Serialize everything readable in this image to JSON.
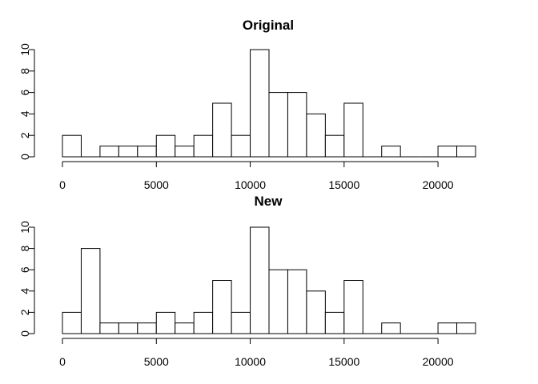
{
  "chart_data": [
    {
      "type": "bar",
      "title": "Original",
      "xlabel": "",
      "ylabel": "",
      "bin_width": 1000,
      "x": [
        0,
        1000,
        2000,
        3000,
        4000,
        5000,
        6000,
        7000,
        8000,
        9000,
        10000,
        11000,
        12000,
        13000,
        14000,
        15000,
        16000,
        17000,
        18000,
        19000,
        20000,
        21000
      ],
      "values": [
        2,
        0,
        1,
        1,
        1,
        2,
        1,
        2,
        5,
        2,
        10,
        6,
        6,
        4,
        2,
        5,
        0,
        1,
        0,
        0,
        1,
        1
      ],
      "xlim": [
        0,
        22000
      ],
      "ylim": [
        0,
        10
      ],
      "xticks": [
        "0",
        "5000",
        "10000",
        "15000",
        "20000"
      ],
      "yticks": [
        "0",
        "2",
        "4",
        "6",
        "8",
        "10"
      ],
      "grid": false
    },
    {
      "type": "bar",
      "title": "New",
      "xlabel": "",
      "ylabel": "",
      "bin_width": 1000,
      "x": [
        0,
        1000,
        2000,
        3000,
        4000,
        5000,
        6000,
        7000,
        8000,
        9000,
        10000,
        11000,
        12000,
        13000,
        14000,
        15000,
        16000,
        17000,
        18000,
        19000,
        20000,
        21000
      ],
      "values": [
        2,
        8,
        1,
        1,
        1,
        2,
        1,
        2,
        5,
        2,
        10,
        6,
        6,
        4,
        2,
        5,
        0,
        1,
        0,
        0,
        1,
        1
      ],
      "xlim": [
        0,
        22000
      ],
      "ylim": [
        0,
        10
      ],
      "xticks": [
        "0",
        "5000",
        "10000",
        "15000",
        "20000"
      ],
      "yticks": [
        "0",
        "2",
        "4",
        "6",
        "8",
        "10"
      ],
      "grid": false
    }
  ]
}
